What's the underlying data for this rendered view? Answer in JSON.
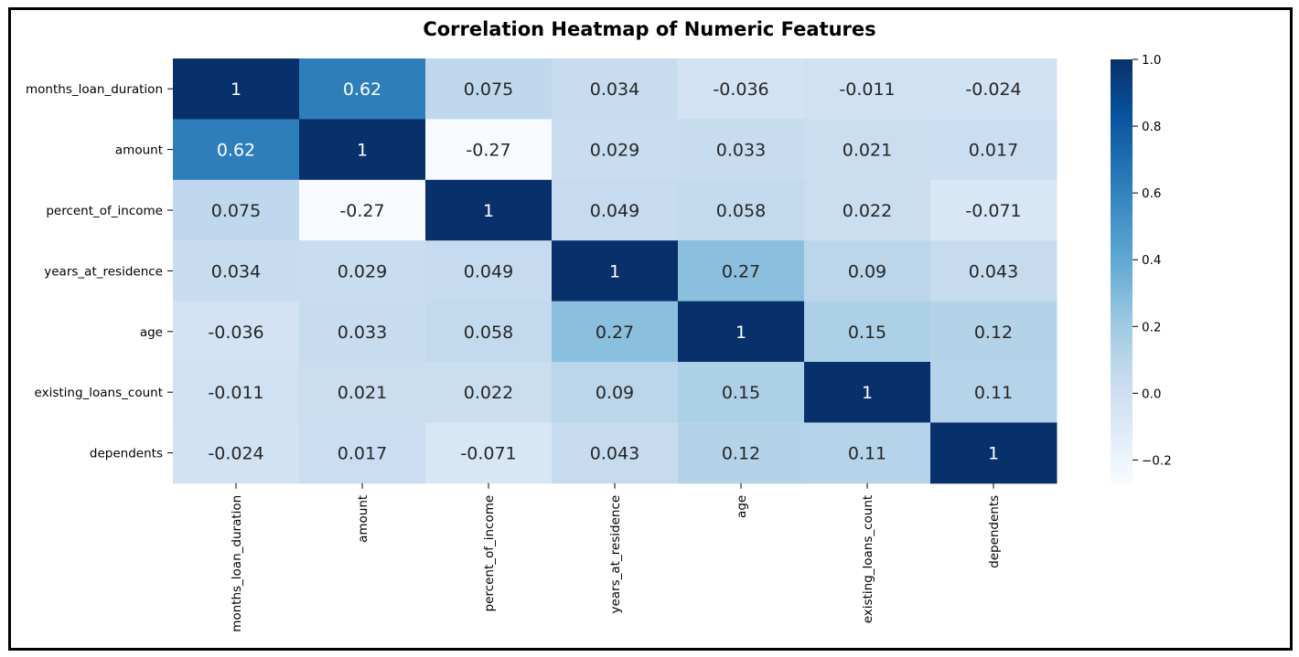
{
  "chart_data": {
    "type": "heatmap",
    "title": "Correlation Heatmap of Numeric Features",
    "xlabel": "",
    "ylabel": "",
    "rows": [
      "months_loan_duration",
      "amount",
      "percent_of_income",
      "years_at_residence",
      "age",
      "existing_loans_count",
      "dependents"
    ],
    "columns": [
      "months_loan_duration",
      "amount",
      "percent_of_income",
      "years_at_residence",
      "age",
      "existing_loans_count",
      "dependents"
    ],
    "values": [
      [
        1,
        0.62,
        0.075,
        0.034,
        -0.036,
        -0.011,
        -0.024
      ],
      [
        0.62,
        1,
        -0.27,
        0.029,
        0.033,
        0.021,
        0.017
      ],
      [
        0.075,
        -0.27,
        1,
        0.049,
        0.058,
        0.022,
        -0.071
      ],
      [
        0.034,
        0.029,
        0.049,
        1,
        0.27,
        0.09,
        0.043
      ],
      [
        -0.036,
        0.033,
        0.058,
        0.27,
        1,
        0.15,
        0.12
      ],
      [
        -0.011,
        0.021,
        0.022,
        0.09,
        0.15,
        1,
        0.11
      ],
      [
        -0.024,
        0.017,
        -0.071,
        0.043,
        0.12,
        0.11,
        1
      ]
    ],
    "annotations": [
      [
        "1",
        "0.62",
        "0.075",
        "0.034",
        "-0.036",
        "-0.011",
        "-0.024"
      ],
      [
        "0.62",
        "1",
        "-0.27",
        "0.029",
        "0.033",
        "0.021",
        "0.017"
      ],
      [
        "0.075",
        "-0.27",
        "1",
        "0.049",
        "0.058",
        "0.022",
        "-0.071"
      ],
      [
        "0.034",
        "0.029",
        "0.049",
        "1",
        "0.27",
        "0.09",
        "0.043"
      ],
      [
        "-0.036",
        "0.033",
        "0.058",
        "0.27",
        "1",
        "0.15",
        "0.12"
      ],
      [
        "-0.011",
        "0.021",
        "0.022",
        "0.09",
        "0.15",
        "1",
        "0.11"
      ],
      [
        "-0.024",
        "0.017",
        "-0.071",
        "0.043",
        "0.12",
        "0.11",
        "1"
      ]
    ],
    "colormap": "Blues",
    "color_range": [
      -0.27,
      1.0
    ],
    "colorbar_ticks": [
      1.0,
      0.8,
      0.6,
      0.4,
      0.2,
      0.0,
      -0.2
    ],
    "colorbar_tick_labels": [
      "1.0",
      "0.8",
      "0.6",
      "0.4",
      "0.2",
      "0.0",
      "−0.2"
    ],
    "grid": false,
    "colorbar_position": "right"
  }
}
